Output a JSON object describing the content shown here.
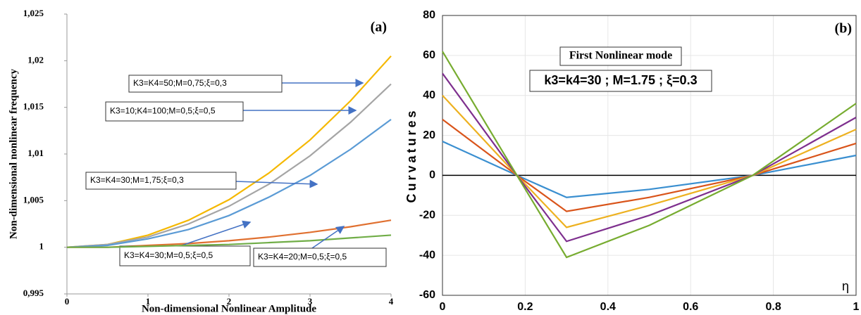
{
  "chart_data": [
    {
      "type": "line",
      "panel_label": "(a)",
      "xlabel": "Non-dimensional Nonlinear Amplitude",
      "ylabel": "Non-dimensional nonlinear frequency",
      "x": [
        0,
        0.5,
        1,
        1.5,
        2,
        2.5,
        3,
        3.5,
        4
      ],
      "xlim": [
        0,
        4
      ],
      "xticks": [
        0,
        1,
        2,
        3,
        4
      ],
      "ylim": [
        0.995,
        1.025
      ],
      "yticks": [
        {
          "value": 0.995,
          "label": "0,995"
        },
        1,
        {
          "value": 1.005,
          "label": "1,005"
        },
        {
          "value": 1.01,
          "label": "1,01"
        },
        {
          "value": 1.015,
          "label": "1,015"
        },
        {
          "value": 1.02,
          "label": "1,02"
        },
        {
          "value": 1.025,
          "label": "1,025"
        }
      ],
      "grid": false,
      "series": [
        {
          "name": "K3=K4=50;M=0,75;ξ=0,3",
          "color": "#f5b800",
          "values": [
            1,
            1.0003,
            1.0013,
            1.0029,
            1.0051,
            1.008,
            1.0115,
            1.0157,
            1.0205
          ]
        },
        {
          "name": "K3=10;K4=100;M=0,5;ξ=0,5",
          "color": "#a5a5a5",
          "values": [
            1,
            1.0003,
            1.0011,
            1.0025,
            1.0044,
            1.0068,
            1.0098,
            1.0134,
            1.0175
          ]
        },
        {
          "name": "K3=K4=30;M=1,75;ξ=0,3",
          "color": "#5b9bd5",
          "values": [
            1,
            1.0002,
            1.0009,
            1.0019,
            1.0034,
            1.0054,
            1.0077,
            1.0105,
            1.0137
          ]
        },
        {
          "name": "K3=K4=30;M=0,5;ξ=0,5",
          "color": "#e07030",
          "values": [
            1,
            1.0,
            1.0002,
            1.0004,
            1.0007,
            1.0011,
            1.0016,
            1.0022,
            1.0029
          ]
        },
        {
          "name": "K3=K4=20;M=0,5;ξ=0,5",
          "color": "#70ad47",
          "values": [
            1,
            1.0,
            1.0001,
            1.0002,
            1.0003,
            1.0005,
            1.0007,
            1.001,
            1.0013
          ]
        }
      ]
    },
    {
      "type": "line",
      "panel_label": "(b)",
      "title": "First Nonlinear mode",
      "subtitle": "k3=k4=30 ; M=1.75 ; ξ=0.3",
      "xlabel": "η",
      "ylabel": "Curvatures",
      "x": [
        0,
        0.18,
        0.3,
        0.5,
        0.75,
        1
      ],
      "xlim": [
        0,
        1
      ],
      "xticks": [
        0,
        0.2,
        0.4,
        0.6,
        0.8,
        1
      ],
      "ylim": [
        -60,
        80
      ],
      "yticks": [
        -60,
        -40,
        -20,
        0,
        20,
        40,
        60,
        80
      ],
      "grid": true,
      "series": [
        {
          "color": "#3a8fd0",
          "values": [
            17,
            0,
            -11,
            -7,
            0,
            10
          ]
        },
        {
          "color": "#d9541a",
          "values": [
            28,
            0,
            -18,
            -11,
            0,
            16
          ]
        },
        {
          "color": "#edb120",
          "values": [
            40,
            0,
            -26,
            -15,
            0,
            23
          ]
        },
        {
          "color": "#7e2f8e",
          "values": [
            51,
            0,
            -33,
            -20,
            0,
            29
          ]
        },
        {
          "color": "#77ac30",
          "values": [
            62,
            0,
            -41,
            -25,
            0,
            36
          ]
        }
      ]
    }
  ]
}
